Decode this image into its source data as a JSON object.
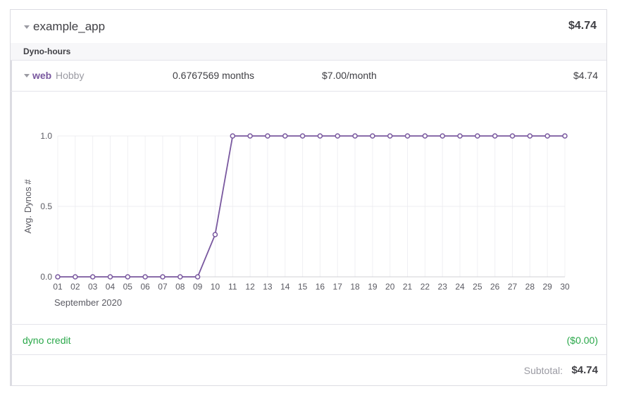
{
  "app": {
    "name": "example_app",
    "total": "$4.74"
  },
  "section": {
    "label": "Dyno-hours"
  },
  "dyno": {
    "name": "web",
    "size": "Hobby",
    "usage": "0.6767569 months",
    "rate": "$7.00/month",
    "cost": "$4.74"
  },
  "credit": {
    "label": "dyno credit",
    "value": "($0.00)"
  },
  "subtotal": {
    "label": "Subtotal:",
    "value": "$4.74"
  },
  "colors": {
    "accent": "#79589f",
    "credit": "#2aa84a"
  },
  "chart_data": {
    "type": "line",
    "xlabel": "September 2020",
    "ylabel": "Avg. Dynos #",
    "ylim": [
      0,
      1
    ],
    "yticks": [
      "0.0",
      "0.5",
      "1.0"
    ],
    "x": [
      "01",
      "02",
      "03",
      "04",
      "05",
      "06",
      "07",
      "08",
      "09",
      "10",
      "11",
      "12",
      "13",
      "14",
      "15",
      "16",
      "17",
      "18",
      "19",
      "20",
      "21",
      "22",
      "23",
      "24",
      "25",
      "26",
      "27",
      "28",
      "29",
      "30"
    ],
    "series": [
      {
        "values": [
          0,
          0,
          0,
          0,
          0,
          0,
          0,
          0,
          0,
          0.3,
          1,
          1,
          1,
          1,
          1,
          1,
          1,
          1,
          1,
          1,
          1,
          1,
          1,
          1,
          1,
          1,
          1,
          1,
          1,
          1
        ]
      }
    ],
    "grid": true
  }
}
